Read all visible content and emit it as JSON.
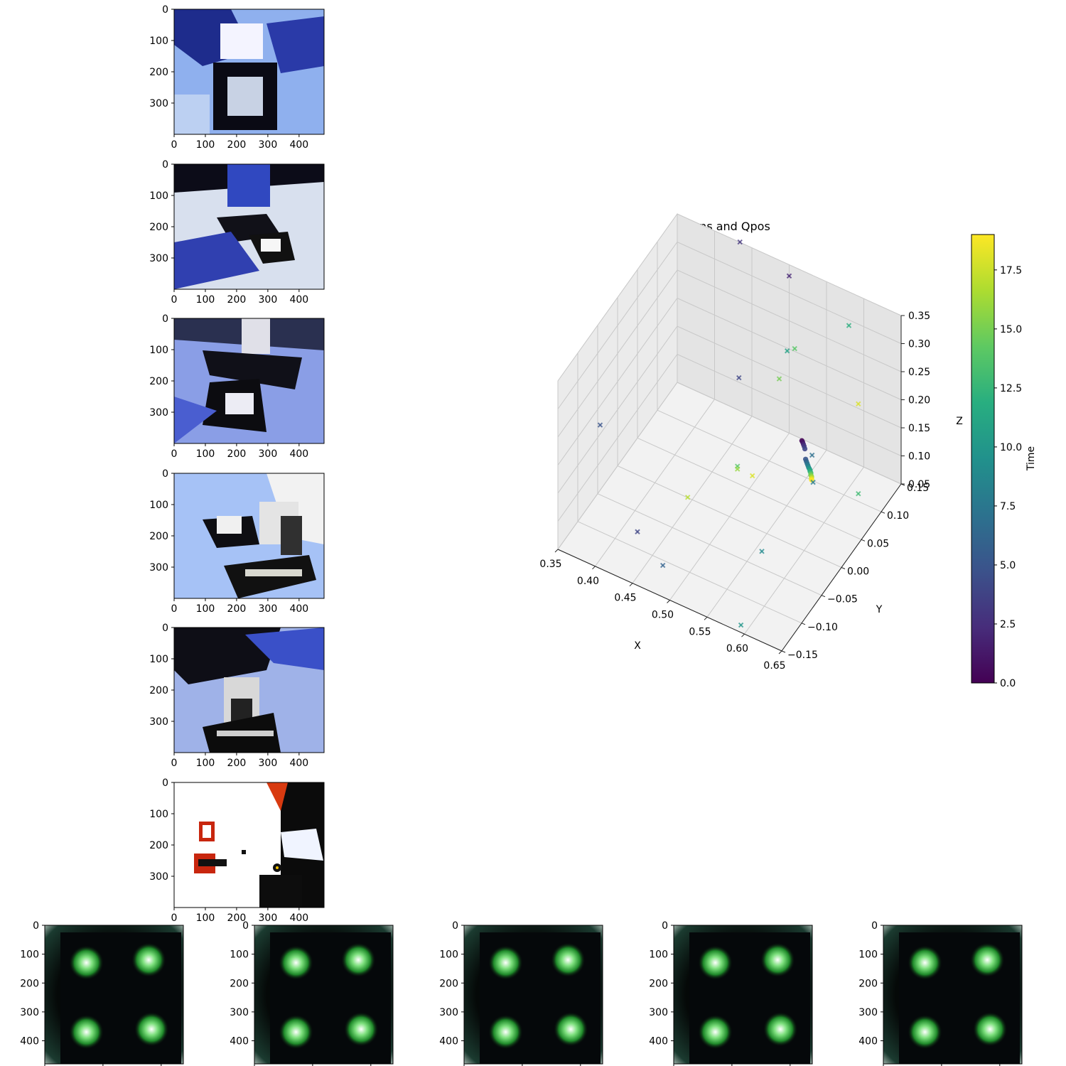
{
  "figure": {
    "colormap": "viridis",
    "camera_panels": [
      {
        "name": "camera-image-1",
        "xticks": [
          "0",
          "100",
          "200",
          "300",
          "400"
        ],
        "yticks": [
          "0",
          "100",
          "200",
          "300"
        ],
        "scene": "dark-blue-robot-closeup",
        "bg": "#8fb0ee"
      },
      {
        "name": "camera-image-2",
        "xticks": [
          "0",
          "100",
          "200",
          "300",
          "400"
        ],
        "yticks": [
          "0",
          "100",
          "200",
          "300"
        ],
        "scene": "white-table-gripper-pad",
        "bg": "#d8e0ee"
      },
      {
        "name": "camera-image-3",
        "xticks": [
          "0",
          "100",
          "200",
          "300",
          "400"
        ],
        "yticks": [
          "0",
          "100",
          "200",
          "300"
        ],
        "scene": "blue-table-pad",
        "bg": "#8a9ee6"
      },
      {
        "name": "camera-image-4",
        "xticks": [
          "0",
          "100",
          "200",
          "300",
          "400"
        ],
        "yticks": [
          "0",
          "100",
          "200",
          "300"
        ],
        "scene": "light-blue-table-gripper",
        "bg": "#a6c2f6"
      },
      {
        "name": "camera-image-5",
        "xticks": [
          "0",
          "100",
          "200",
          "300",
          "400"
        ],
        "yticks": [
          "0",
          "100",
          "200",
          "300"
        ],
        "scene": "dark-gripper-pad",
        "bg": "#9fb2e8"
      },
      {
        "name": "camera-image-6",
        "xticks": [
          "0",
          "100",
          "200",
          "300",
          "400"
        ],
        "yticks": [
          "0",
          "100",
          "200",
          "300"
        ],
        "scene": "white-top-view-red-pads",
        "bg": "#ffffff"
      }
    ],
    "tactile_panels": [
      {
        "name": "tactile-image-1",
        "yticks": [
          "0",
          "100",
          "200",
          "300",
          "400"
        ]
      },
      {
        "name": "tactile-image-2",
        "yticks": [
          "0",
          "100",
          "200",
          "300",
          "400"
        ]
      },
      {
        "name": "tactile-image-3",
        "yticks": [
          "0",
          "100",
          "200",
          "300",
          "400"
        ]
      },
      {
        "name": "tactile-image-4",
        "yticks": [
          "0",
          "100",
          "200",
          "300",
          "400"
        ]
      },
      {
        "name": "tactile-image-5",
        "yticks": [
          "0",
          "100",
          "200",
          "300",
          "400"
        ]
      }
    ]
  },
  "chart_data": {
    "type": "scatter",
    "projection": "3d",
    "title": "Actions and Qpos",
    "xlabel": "X",
    "ylabel": "Y",
    "zlabel": "Z",
    "xlim": [
      0.35,
      0.65
    ],
    "ylim": [
      -0.15,
      0.15
    ],
    "zlim": [
      0.05,
      0.35
    ],
    "xticks": [
      "0.35",
      "0.40",
      "0.45",
      "0.50",
      "0.55",
      "0.60",
      "0.65"
    ],
    "yticks": [
      "−0.15",
      "−0.10",
      "−0.05",
      "0.00",
      "0.05",
      "0.10",
      "0.15"
    ],
    "zticks": [
      "0.05",
      "0.10",
      "0.15",
      "0.20",
      "0.25",
      "0.30",
      "0.35"
    ],
    "grid": true,
    "colorbar": {
      "label": "Time",
      "range": [
        0,
        19
      ],
      "ticks": [
        "0.0",
        "2.5",
        "5.0",
        "7.5",
        "10.0",
        "12.5",
        "15.0",
        "17.5"
      ],
      "tick_values": [
        0,
        2.5,
        5,
        7.5,
        10,
        12.5,
        15,
        17.5
      ]
    },
    "series": [
      {
        "marker": "o",
        "points": [
          {
            "x": 0.565,
            "y": 0.06,
            "z": 0.165,
            "t": 0
          },
          {
            "x": 0.566,
            "y": 0.06,
            "z": 0.163,
            "t": 1
          },
          {
            "x": 0.567,
            "y": 0.06,
            "z": 0.16,
            "t": 2
          },
          {
            "x": 0.568,
            "y": 0.06,
            "z": 0.157,
            "t": 3
          },
          {
            "x": 0.569,
            "y": 0.06,
            "z": 0.153,
            "t": 4
          },
          {
            "x": 0.57,
            "y": 0.06,
            "z": 0.135,
            "t": 5
          },
          {
            "x": 0.571,
            "y": 0.06,
            "z": 0.132,
            "t": 6
          },
          {
            "x": 0.572,
            "y": 0.06,
            "z": 0.129,
            "t": 7
          },
          {
            "x": 0.573,
            "y": 0.06,
            "z": 0.126,
            "t": 8
          },
          {
            "x": 0.574,
            "y": 0.06,
            "z": 0.123,
            "t": 9
          },
          {
            "x": 0.575,
            "y": 0.06,
            "z": 0.121,
            "t": 10
          },
          {
            "x": 0.576,
            "y": 0.06,
            "z": 0.119,
            "t": 11
          },
          {
            "x": 0.576,
            "y": 0.06,
            "z": 0.117,
            "t": 12
          },
          {
            "x": 0.577,
            "y": 0.06,
            "z": 0.115,
            "t": 13
          },
          {
            "x": 0.577,
            "y": 0.06,
            "z": 0.113,
            "t": 14
          },
          {
            "x": 0.577,
            "y": 0.06,
            "z": 0.111,
            "t": 15
          },
          {
            "x": 0.578,
            "y": 0.06,
            "z": 0.109,
            "t": 16
          },
          {
            "x": 0.578,
            "y": 0.06,
            "z": 0.107,
            "t": 17
          },
          {
            "x": 0.578,
            "y": 0.06,
            "z": 0.105,
            "t": 18
          },
          {
            "x": 0.578,
            "y": 0.06,
            "z": 0.103,
            "t": 19
          }
        ]
      },
      {
        "marker": "x",
        "points": [
          {
            "x": 0.45,
            "y": 0.12,
            "z": 0.39,
            "t": 3
          },
          {
            "x": 0.5,
            "y": 0.15,
            "z": 0.33,
            "t": 2
          },
          {
            "x": 0.38,
            "y": -0.1,
            "z": 0.24,
            "t": 5
          },
          {
            "x": 0.47,
            "y": 0.08,
            "z": 0.2,
            "t": 4
          },
          {
            "x": 0.48,
            "y": -0.13,
            "z": 0.08,
            "t": 6
          },
          {
            "x": 0.58,
            "y": 0.15,
            "z": 0.29,
            "t": 12
          },
          {
            "x": 0.54,
            "y": 0.07,
            "z": 0.3,
            "t": 11
          },
          {
            "x": 0.55,
            "y": 0.07,
            "z": 0.31,
            "t": 14
          },
          {
            "x": 0.54,
            "y": 0.05,
            "z": 0.27,
            "t": 15
          },
          {
            "x": 0.63,
            "y": 0.08,
            "z": 0.25,
            "t": 18
          },
          {
            "x": 0.6,
            "y": 0.02,
            "z": 0.2,
            "t": 7
          },
          {
            "x": 0.5,
            "y": 0.02,
            "z": 0.12,
            "t": 14
          },
          {
            "x": 0.5,
            "y": 0.02,
            "z": 0.115,
            "t": 16
          },
          {
            "x": 0.52,
            "y": 0.02,
            "z": 0.115,
            "t": 18
          },
          {
            "x": 0.46,
            "y": -0.03,
            "z": 0.09,
            "t": 17
          },
          {
            "x": 0.58,
            "y": 0.06,
            "z": 0.1,
            "t": 8
          },
          {
            "x": 0.43,
            "y": -0.1,
            "z": 0.08,
            "t": 4
          },
          {
            "x": 0.57,
            "y": -0.05,
            "z": 0.08,
            "t": 9
          },
          {
            "x": 0.63,
            "y": 0.08,
            "z": 0.09,
            "t": 13
          },
          {
            "x": 0.59,
            "y": -0.14,
            "z": 0.05,
            "t": 10
          }
        ]
      }
    ]
  }
}
